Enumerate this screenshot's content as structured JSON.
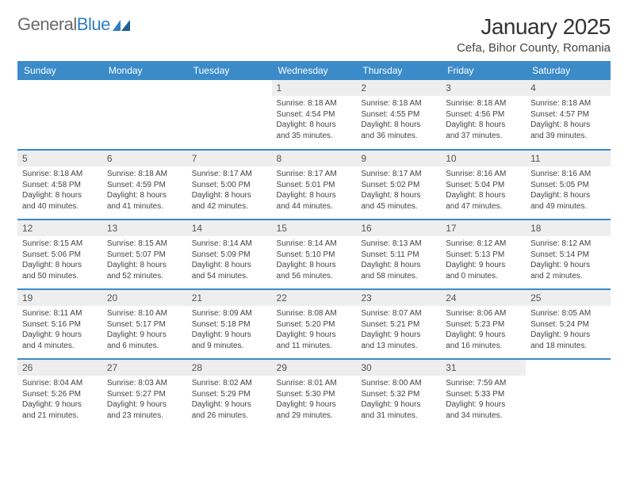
{
  "logo": {
    "text_a": "General",
    "text_b": "Blue"
  },
  "title": "January 2025",
  "location": "Cefa, Bihor County, Romania",
  "colors": {
    "header_bg": "#3b8bc9",
    "header_fg": "#ffffff",
    "daynum_bg": "#eeeeee",
    "row_border": "#3b8bc9",
    "page_bg": "#ffffff",
    "text": "#333333",
    "logo_blue": "#2d7fc4"
  },
  "weekdays": [
    "Sunday",
    "Monday",
    "Tuesday",
    "Wednesday",
    "Thursday",
    "Friday",
    "Saturday"
  ],
  "weeks": [
    [
      {
        "n": "",
        "sr": "",
        "ss": "",
        "dl1": "",
        "dl2": ""
      },
      {
        "n": "",
        "sr": "",
        "ss": "",
        "dl1": "",
        "dl2": ""
      },
      {
        "n": "",
        "sr": "",
        "ss": "",
        "dl1": "",
        "dl2": ""
      },
      {
        "n": "1",
        "sr": "Sunrise: 8:18 AM",
        "ss": "Sunset: 4:54 PM",
        "dl1": "Daylight: 8 hours",
        "dl2": "and 35 minutes."
      },
      {
        "n": "2",
        "sr": "Sunrise: 8:18 AM",
        "ss": "Sunset: 4:55 PM",
        "dl1": "Daylight: 8 hours",
        "dl2": "and 36 minutes."
      },
      {
        "n": "3",
        "sr": "Sunrise: 8:18 AM",
        "ss": "Sunset: 4:56 PM",
        "dl1": "Daylight: 8 hours",
        "dl2": "and 37 minutes."
      },
      {
        "n": "4",
        "sr": "Sunrise: 8:18 AM",
        "ss": "Sunset: 4:57 PM",
        "dl1": "Daylight: 8 hours",
        "dl2": "and 39 minutes."
      }
    ],
    [
      {
        "n": "5",
        "sr": "Sunrise: 8:18 AM",
        "ss": "Sunset: 4:58 PM",
        "dl1": "Daylight: 8 hours",
        "dl2": "and 40 minutes."
      },
      {
        "n": "6",
        "sr": "Sunrise: 8:18 AM",
        "ss": "Sunset: 4:59 PM",
        "dl1": "Daylight: 8 hours",
        "dl2": "and 41 minutes."
      },
      {
        "n": "7",
        "sr": "Sunrise: 8:17 AM",
        "ss": "Sunset: 5:00 PM",
        "dl1": "Daylight: 8 hours",
        "dl2": "and 42 minutes."
      },
      {
        "n": "8",
        "sr": "Sunrise: 8:17 AM",
        "ss": "Sunset: 5:01 PM",
        "dl1": "Daylight: 8 hours",
        "dl2": "and 44 minutes."
      },
      {
        "n": "9",
        "sr": "Sunrise: 8:17 AM",
        "ss": "Sunset: 5:02 PM",
        "dl1": "Daylight: 8 hours",
        "dl2": "and 45 minutes."
      },
      {
        "n": "10",
        "sr": "Sunrise: 8:16 AM",
        "ss": "Sunset: 5:04 PM",
        "dl1": "Daylight: 8 hours",
        "dl2": "and 47 minutes."
      },
      {
        "n": "11",
        "sr": "Sunrise: 8:16 AM",
        "ss": "Sunset: 5:05 PM",
        "dl1": "Daylight: 8 hours",
        "dl2": "and 49 minutes."
      }
    ],
    [
      {
        "n": "12",
        "sr": "Sunrise: 8:15 AM",
        "ss": "Sunset: 5:06 PM",
        "dl1": "Daylight: 8 hours",
        "dl2": "and 50 minutes."
      },
      {
        "n": "13",
        "sr": "Sunrise: 8:15 AM",
        "ss": "Sunset: 5:07 PM",
        "dl1": "Daylight: 8 hours",
        "dl2": "and 52 minutes."
      },
      {
        "n": "14",
        "sr": "Sunrise: 8:14 AM",
        "ss": "Sunset: 5:09 PM",
        "dl1": "Daylight: 8 hours",
        "dl2": "and 54 minutes."
      },
      {
        "n": "15",
        "sr": "Sunrise: 8:14 AM",
        "ss": "Sunset: 5:10 PM",
        "dl1": "Daylight: 8 hours",
        "dl2": "and 56 minutes."
      },
      {
        "n": "16",
        "sr": "Sunrise: 8:13 AM",
        "ss": "Sunset: 5:11 PM",
        "dl1": "Daylight: 8 hours",
        "dl2": "and 58 minutes."
      },
      {
        "n": "17",
        "sr": "Sunrise: 8:12 AM",
        "ss": "Sunset: 5:13 PM",
        "dl1": "Daylight: 9 hours",
        "dl2": "and 0 minutes."
      },
      {
        "n": "18",
        "sr": "Sunrise: 8:12 AM",
        "ss": "Sunset: 5:14 PM",
        "dl1": "Daylight: 9 hours",
        "dl2": "and 2 minutes."
      }
    ],
    [
      {
        "n": "19",
        "sr": "Sunrise: 8:11 AM",
        "ss": "Sunset: 5:16 PM",
        "dl1": "Daylight: 9 hours",
        "dl2": "and 4 minutes."
      },
      {
        "n": "20",
        "sr": "Sunrise: 8:10 AM",
        "ss": "Sunset: 5:17 PM",
        "dl1": "Daylight: 9 hours",
        "dl2": "and 6 minutes."
      },
      {
        "n": "21",
        "sr": "Sunrise: 8:09 AM",
        "ss": "Sunset: 5:18 PM",
        "dl1": "Daylight: 9 hours",
        "dl2": "and 9 minutes."
      },
      {
        "n": "22",
        "sr": "Sunrise: 8:08 AM",
        "ss": "Sunset: 5:20 PM",
        "dl1": "Daylight: 9 hours",
        "dl2": "and 11 minutes."
      },
      {
        "n": "23",
        "sr": "Sunrise: 8:07 AM",
        "ss": "Sunset: 5:21 PM",
        "dl1": "Daylight: 9 hours",
        "dl2": "and 13 minutes."
      },
      {
        "n": "24",
        "sr": "Sunrise: 8:06 AM",
        "ss": "Sunset: 5:23 PM",
        "dl1": "Daylight: 9 hours",
        "dl2": "and 16 minutes."
      },
      {
        "n": "25",
        "sr": "Sunrise: 8:05 AM",
        "ss": "Sunset: 5:24 PM",
        "dl1": "Daylight: 9 hours",
        "dl2": "and 18 minutes."
      }
    ],
    [
      {
        "n": "26",
        "sr": "Sunrise: 8:04 AM",
        "ss": "Sunset: 5:26 PM",
        "dl1": "Daylight: 9 hours",
        "dl2": "and 21 minutes."
      },
      {
        "n": "27",
        "sr": "Sunrise: 8:03 AM",
        "ss": "Sunset: 5:27 PM",
        "dl1": "Daylight: 9 hours",
        "dl2": "and 23 minutes."
      },
      {
        "n": "28",
        "sr": "Sunrise: 8:02 AM",
        "ss": "Sunset: 5:29 PM",
        "dl1": "Daylight: 9 hours",
        "dl2": "and 26 minutes."
      },
      {
        "n": "29",
        "sr": "Sunrise: 8:01 AM",
        "ss": "Sunset: 5:30 PM",
        "dl1": "Daylight: 9 hours",
        "dl2": "and 29 minutes."
      },
      {
        "n": "30",
        "sr": "Sunrise: 8:00 AM",
        "ss": "Sunset: 5:32 PM",
        "dl1": "Daylight: 9 hours",
        "dl2": "and 31 minutes."
      },
      {
        "n": "31",
        "sr": "Sunrise: 7:59 AM",
        "ss": "Sunset: 5:33 PM",
        "dl1": "Daylight: 9 hours",
        "dl2": "and 34 minutes."
      },
      {
        "n": "",
        "sr": "",
        "ss": "",
        "dl1": "",
        "dl2": ""
      }
    ]
  ]
}
